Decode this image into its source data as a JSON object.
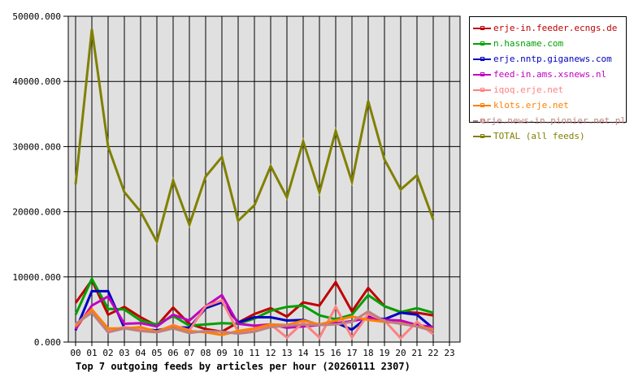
{
  "chart_data": {
    "type": "line",
    "title": "Top 7 outgoing feeds by articles per hour (20260111 2307)",
    "xlabel": "",
    "ylabel": "",
    "ylim": [
      0,
      50000
    ],
    "grid": true,
    "legend_position": "right",
    "y_ticks": [
      "0.000",
      "10000.000",
      "20000.000",
      "30000.000",
      "40000.000",
      "50000.000"
    ],
    "x": [
      "00",
      "01",
      "02",
      "03",
      "04",
      "05",
      "06",
      "07",
      "08",
      "09",
      "10",
      "11",
      "12",
      "13",
      "14",
      "15",
      "16",
      "17",
      "18",
      "19",
      "20",
      "21",
      "22",
      "23"
    ],
    "series": [
      {
        "name": "erje-in.feeder.ecngs.de",
        "color": "#c00000",
        "values": [
          6000,
          9500,
          4200,
          5400,
          3800,
          2500,
          5300,
          2800,
          2000,
          1600,
          3000,
          4300,
          5200,
          3900,
          6100,
          5600,
          9200,
          4700,
          8300,
          5500,
          4600,
          4500,
          4100
        ]
      },
      {
        "name": "n.hasname.com",
        "color": "#00a000",
        "values": [
          4200,
          9700,
          5100,
          5000,
          3300,
          2700,
          4000,
          2500,
          2700,
          2900,
          2800,
          3600,
          4800,
          5400,
          5600,
          4100,
          3500,
          4200,
          7200,
          5500,
          4600,
          5200,
          4500
        ]
      },
      {
        "name": "erje.nntp.giganews.com",
        "color": "#0000c0",
        "values": [
          1800,
          7800,
          7800,
          2200,
          2000,
          1800,
          2300,
          2200,
          5200,
          6100,
          3000,
          3800,
          3800,
          3300,
          3400,
          2600,
          3000,
          1900,
          3900,
          3500,
          4500,
          4200,
          2100
        ]
      },
      {
        "name": "feed-in.ams.xsnews.nl",
        "color": "#c000c0",
        "values": [
          2000,
          5600,
          7000,
          2800,
          2900,
          2400,
          4200,
          3300,
          5500,
          7200,
          2800,
          2500,
          2700,
          2200,
          2400,
          2600,
          2900,
          3200,
          3700,
          3400,
          3300,
          2600,
          2300
        ]
      },
      {
        "name": "iqoq.erje.net",
        "color": "#ff8080",
        "values": [
          2600,
          5000,
          1700,
          2300,
          2000,
          1600,
          2600,
          1800,
          5500,
          6400,
          1600,
          1700,
          2700,
          700,
          3000,
          700,
          5400,
          700,
          4300,
          3300,
          600,
          3100,
          1200
        ]
      },
      {
        "name": "klots.erje.net",
        "color": "#ff8000",
        "values": [
          2400,
          5000,
          2100,
          2100,
          2300,
          1600,
          2500,
          1700,
          1500,
          1100,
          1700,
          2100,
          2700,
          2600,
          3300,
          2700,
          3300,
          3900,
          3400,
          3100,
          2900,
          2400,
          2000
        ]
      },
      {
        "name": "erje.news-in.pionier.net.pl",
        "color": "#c08080",
        "values": [
          2800,
          4500,
          1500,
          2100,
          1700,
          1500,
          2100,
          1400,
          1700,
          1600,
          1300,
          1600,
          2300,
          2500,
          2700,
          2600,
          2700,
          3100,
          4700,
          3200,
          2800,
          2400,
          1700
        ]
      },
      {
        "name": "TOTAL (all feeds)",
        "color": "#808000",
        "values": [
          24200,
          48000,
          30000,
          23000,
          20000,
          15400,
          24800,
          18000,
          25400,
          28400,
          18600,
          21000,
          27000,
          22200,
          30800,
          23000,
          32400,
          24600,
          37000,
          28000,
          23400,
          25600,
          18800
        ]
      }
    ]
  },
  "legend": {
    "items": [
      {
        "label": "erje-in.feeder.ecngs.de",
        "color": "#c00000"
      },
      {
        "label": "n.hasname.com",
        "color": "#00a000"
      },
      {
        "label": "erje.nntp.giganews.com",
        "color": "#0000c0"
      },
      {
        "label": "feed-in.ams.xsnews.nl",
        "color": "#c000c0"
      },
      {
        "label": "iqoq.erje.net",
        "color": "#ff8080"
      },
      {
        "label": "klots.erje.net",
        "color": "#ff8000"
      },
      {
        "label": "erje.news-in.pionier.net.pl",
        "color": "#c08080"
      },
      {
        "label": "TOTAL (all feeds)",
        "color": "#808000"
      }
    ]
  }
}
